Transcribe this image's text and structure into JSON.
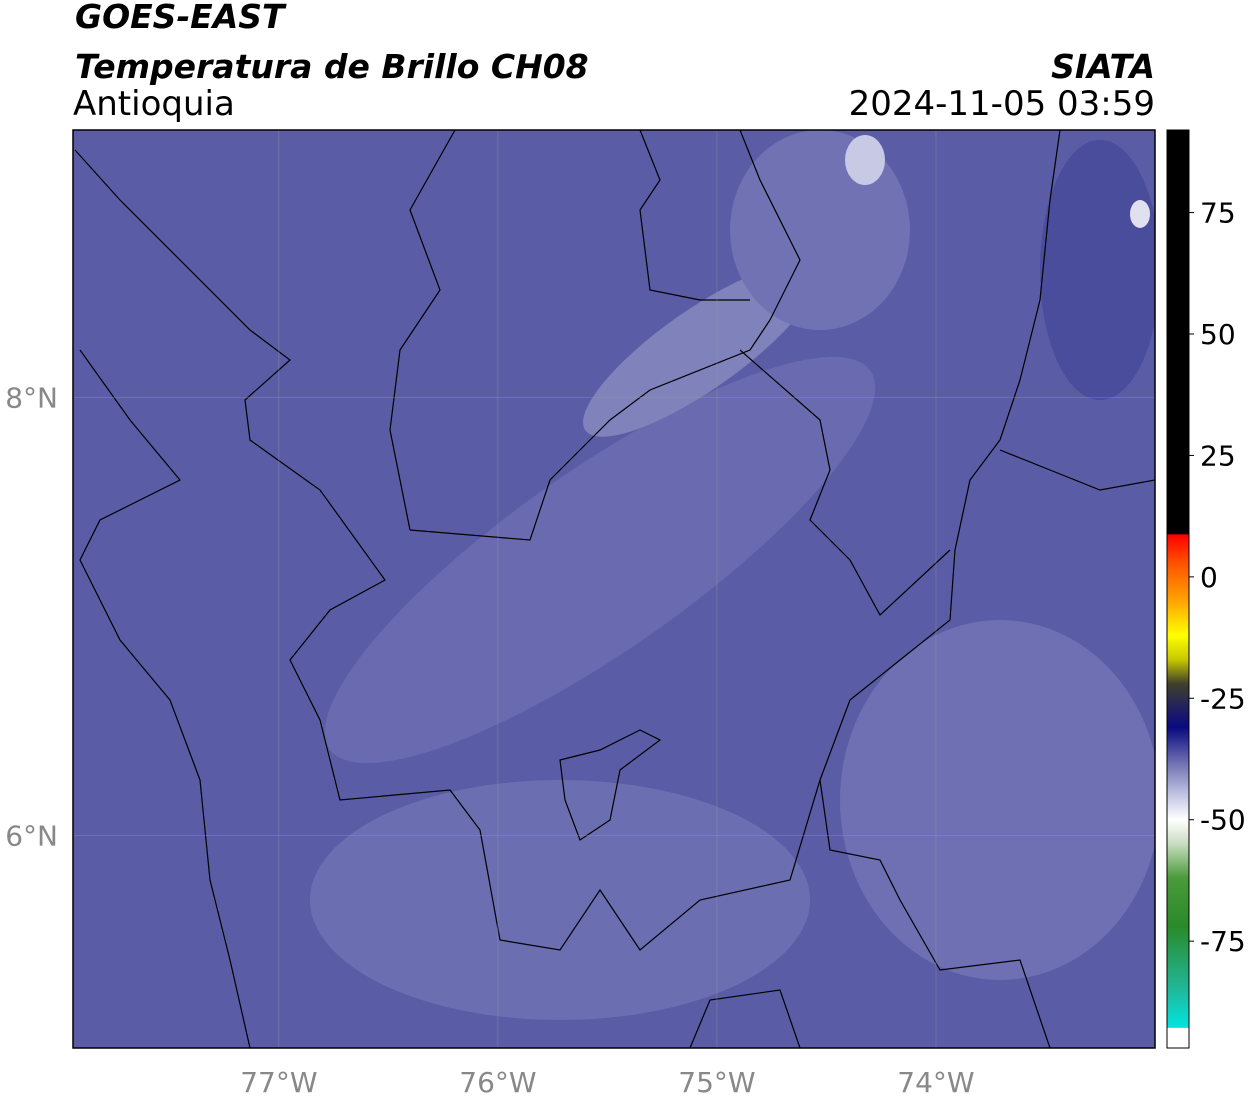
{
  "header": {
    "title": "GOES-EAST",
    "subtitle": "Temperatura de Brillo CH08",
    "region": "Antioquia",
    "source": "SIATA",
    "datetime": "2024-11-05 03:59"
  },
  "chart_data": {
    "type": "map",
    "xlim": [
      -77.94,
      -73.0
    ],
    "ylim": [
      5.03,
      9.22
    ],
    "xticks": [
      {
        "value": -77,
        "label": "77°W"
      },
      {
        "value": -76,
        "label": "76°W"
      },
      {
        "value": -75,
        "label": "75°W"
      },
      {
        "value": -74,
        "label": "74°W"
      }
    ],
    "yticks": [
      {
        "value": 6,
        "label": "6°N"
      },
      {
        "value": 8,
        "label": "8°N"
      }
    ],
    "grid": true,
    "colorbar": {
      "lim": [
        -97,
        92
      ],
      "ticks": [
        -75,
        -50,
        -25,
        0,
        25,
        50,
        75
      ],
      "stops": [
        {
          "value": -97,
          "color": "#ffffff"
        },
        {
          "value": -92.9,
          "color": "#ffffff"
        },
        {
          "value": -92.8,
          "color": "#00e5e0"
        },
        {
          "value": -85,
          "color": "#20b89a"
        },
        {
          "value": -72,
          "color": "#2a8a2a"
        },
        {
          "value": -62,
          "color": "#4a9a3a"
        },
        {
          "value": -55,
          "color": "#c8dcc0"
        },
        {
          "value": -50,
          "color": "#ffffff"
        },
        {
          "value": -45,
          "color": "#c4c6e4"
        },
        {
          "value": -38,
          "color": "#6a6cb0"
        },
        {
          "value": -31,
          "color": "#0a0a80"
        },
        {
          "value": -27,
          "color": "#202060"
        },
        {
          "value": -22,
          "color": "#40402a"
        },
        {
          "value": -17,
          "color": "#c8c800"
        },
        {
          "value": -12,
          "color": "#ffff00"
        },
        {
          "value": -5,
          "color": "#ffa500"
        },
        {
          "value": 3,
          "color": "#ff5000"
        },
        {
          "value": 8.7,
          "color": "#ff0000"
        },
        {
          "value": 8.8,
          "color": "#000000"
        },
        {
          "value": 92,
          "color": "#000000"
        }
      ]
    }
  }
}
